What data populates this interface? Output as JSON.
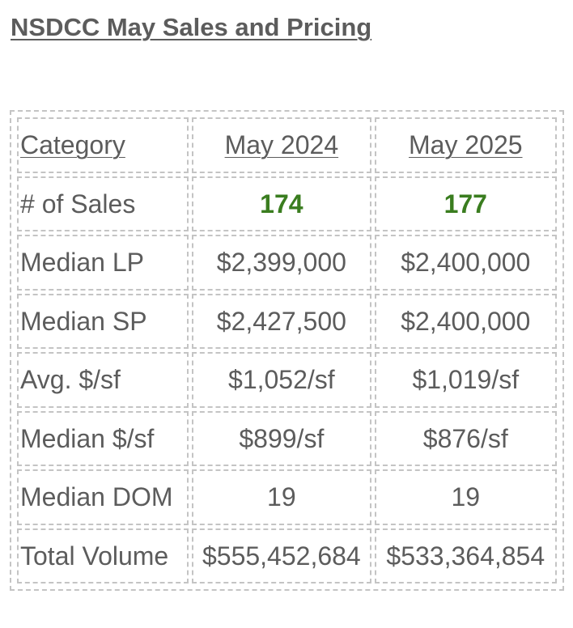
{
  "title": "NSDCC May Sales and Pricing",
  "colors": {
    "text": "#5c5c5c",
    "highlight": "#3a7d1f",
    "border": "#c4c4c4"
  },
  "table": {
    "headers": [
      "Category",
      "May 2024",
      "May 2025"
    ],
    "rows": [
      {
        "category": "# of Sales",
        "may_2024": "174",
        "may_2025": "177",
        "highlight": true
      },
      {
        "category": "Median LP",
        "may_2024": "$2,399,000",
        "may_2025": "$2,400,000"
      },
      {
        "category": "Median SP",
        "may_2024": "$2,427,500",
        "may_2025": "$2,400,000"
      },
      {
        "category": "Avg. $/sf",
        "may_2024": "$1,052/sf",
        "may_2025": "$1,019/sf"
      },
      {
        "category": "Median $/sf",
        "may_2024": "$899/sf",
        "may_2025": "$876/sf"
      },
      {
        "category": "Median DOM",
        "may_2024": "19",
        "may_2025": "19"
      },
      {
        "category": "Total Volume",
        "may_2024": "$555,452,684",
        "may_2025": "$533,364,854"
      }
    ]
  }
}
